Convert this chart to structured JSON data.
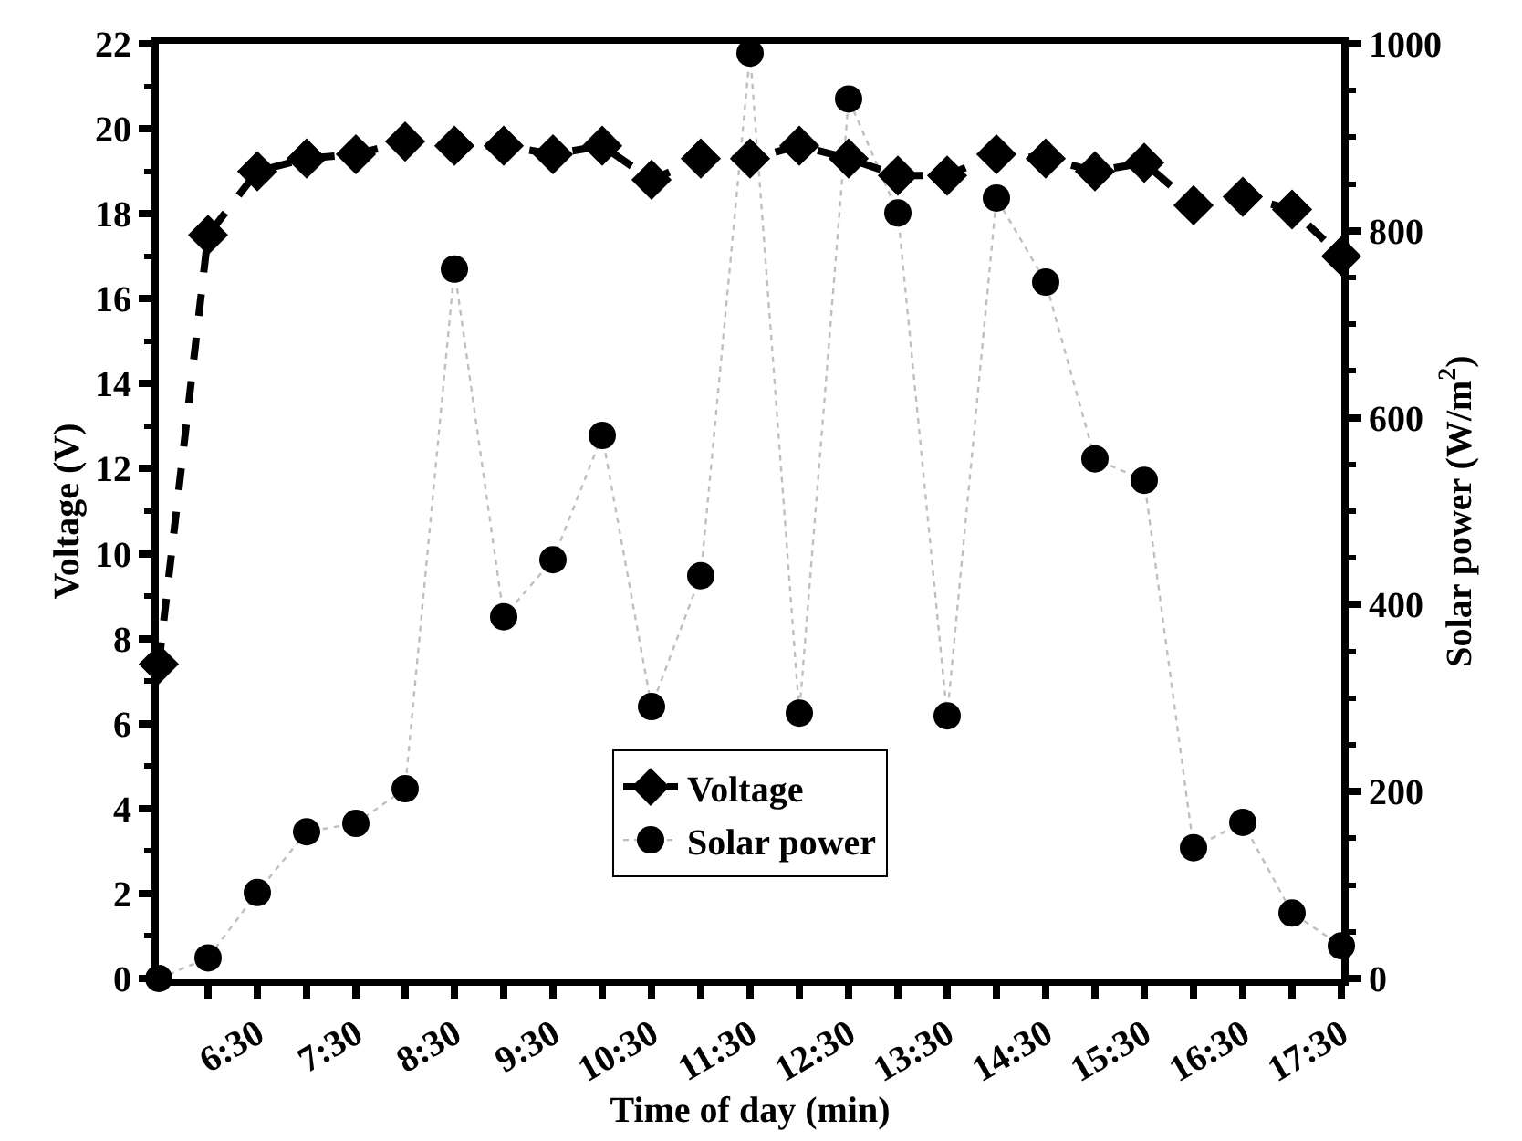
{
  "chart_data": {
    "type": "line",
    "xlabel": "Time of day (min)",
    "ylabel": "Voltage (V)",
    "y2label": "Solar power (W/m$^{2}$)",
    "x": [
      5.5,
      6,
      6.5,
      7,
      7.5,
      8,
      8.5,
      9,
      9.5,
      10,
      10.5,
      11,
      11.5,
      12,
      12.5,
      13,
      13.5,
      14,
      14.5,
      15,
      15.5,
      16,
      16.5,
      17,
      17.5
    ],
    "series": [
      {
        "name": "Voltage",
        "color": "#000000",
        "marker": "diamond",
        "line_style": "dashed",
        "values": [
          7.4,
          17.5,
          19.0,
          19.3,
          19.4,
          19.7,
          19.6,
          19.6,
          19.4,
          19.6,
          18.8,
          19.3,
          19.3,
          19.6,
          19.3,
          18.9,
          18.9,
          19.4,
          19.3,
          19.0,
          19.2,
          18.2,
          18.4,
          18.1,
          17.0
        ]
      },
      {
        "name": "Solar power",
        "color": "#000000",
        "marker": "circle",
        "line_style": "dotted",
        "axis": "y2",
        "values": [
          0,
          22,
          92,
          157,
          166,
          203,
          759,
          387,
          448,
          581,
          291,
          431,
          990,
          284,
          941,
          819,
          281,
          835,
          745,
          556,
          533,
          140,
          167,
          70,
          35
        ]
      }
    ],
    "xlim": [
      5.5,
      17.5
    ],
    "xticks": [
      {
        "value": 6,
        "label": null
      },
      {
        "value": 6.5,
        "label": "6:30"
      },
      {
        "value": 7,
        "label": null
      },
      {
        "value": 7.5,
        "label": "7:30"
      },
      {
        "value": 8,
        "label": null
      },
      {
        "value": 8.5,
        "label": "8:30"
      },
      {
        "value": 9,
        "label": null
      },
      {
        "value": 9.5,
        "label": "9:30"
      },
      {
        "value": 10,
        "label": null
      },
      {
        "value": 10.5,
        "label": "10:30"
      },
      {
        "value": 11,
        "label": null
      },
      {
        "value": 11.5,
        "label": "11:30"
      },
      {
        "value": 12,
        "label": null
      },
      {
        "value": 12.5,
        "label": "12:30"
      },
      {
        "value": 13,
        "label": null
      },
      {
        "value": 13.5,
        "label": "13:30"
      },
      {
        "value": 14,
        "label": null
      },
      {
        "value": 14.5,
        "label": "14:30"
      },
      {
        "value": 15,
        "label": null
      },
      {
        "value": 15.5,
        "label": "15:30"
      },
      {
        "value": 16,
        "label": null
      },
      {
        "value": 16.5,
        "label": "16:30"
      },
      {
        "value": 17,
        "label": null
      },
      {
        "value": 17.5,
        "label": "17:30"
      }
    ],
    "ylim": [
      0,
      22
    ],
    "yticks": [
      0,
      2,
      4,
      6,
      8,
      10,
      12,
      14,
      16,
      18,
      20,
      22
    ],
    "y2lim": [
      0,
      1000
    ],
    "y2ticks": [
      0,
      200,
      400,
      600,
      800,
      1000
    ],
    "legend": "bottom"
  }
}
